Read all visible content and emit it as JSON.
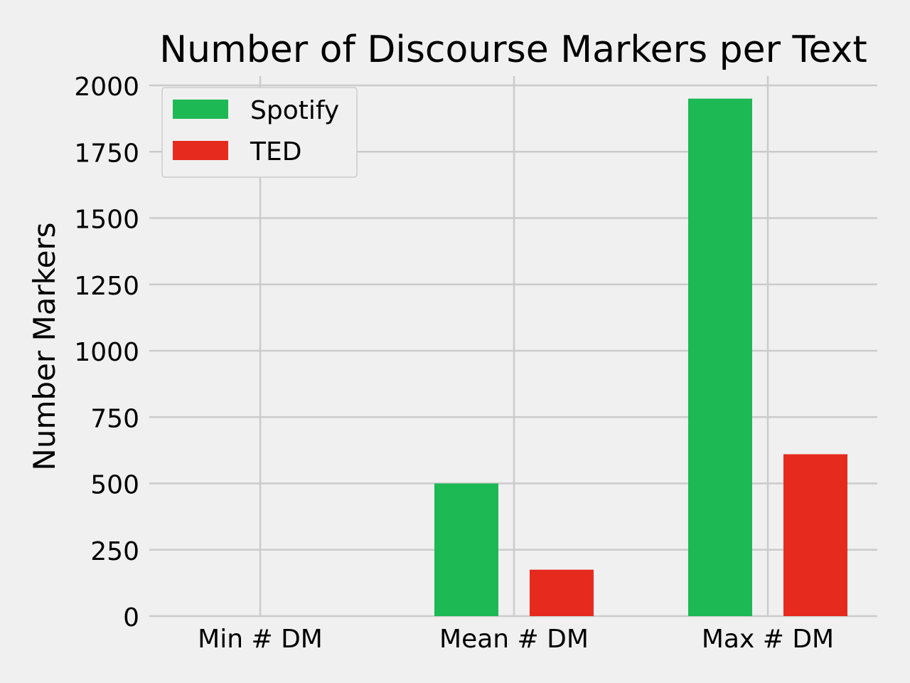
{
  "chart_data": {
    "type": "bar",
    "title": "Number of Discourse Markers per Text",
    "xlabel": "",
    "ylabel": "Number Markers",
    "categories": [
      "Min # DM",
      "Mean # DM",
      "Max # DM"
    ],
    "series": [
      {
        "name": "Spotify",
        "color": "#1db954",
        "values": [
          0,
          500,
          1950
        ]
      },
      {
        "name": "TED",
        "color": "#e62b1e",
        "values": [
          0,
          175,
          610
        ]
      }
    ],
    "ylim": [
      0,
      2000
    ],
    "yticks": [
      0,
      250,
      500,
      750,
      1000,
      1250,
      1500,
      1750,
      2000
    ],
    "grid": true,
    "legend_position": "upper-left"
  }
}
